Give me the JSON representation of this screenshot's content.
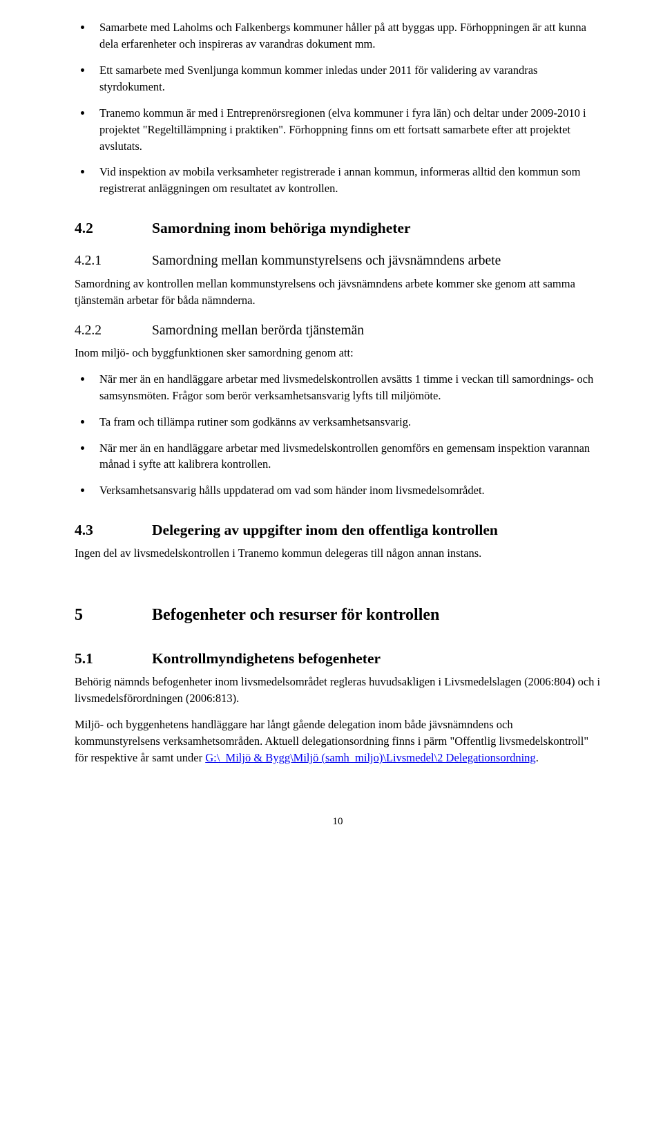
{
  "top_bullets": [
    "Samarbete med Laholms och Falkenbergs kommuner håller på att byggas upp. Förhoppningen är att kunna dela erfarenheter och inspireras av varandras dokument mm.",
    "Ett samarbete med Svenljunga kommun kommer inledas under 2011 för validering av varandras styrdokument.",
    "Tranemo kommun är med i Entreprenörsregionen (elva kommuner i fyra län) och deltar under 2009-2010 i projektet \"Regeltillämpning i praktiken\". Förhoppning finns om ett fortsatt samarbete efter att projektet avslutats.",
    "Vid inspektion av mobila verksamheter registrerade i annan kommun, informeras alltid den kommun som registrerat anläggningen om resultatet av kontrollen."
  ],
  "s42": {
    "num": "4.2",
    "title": "Samordning inom behöriga myndigheter"
  },
  "s421": {
    "num": "4.2.1",
    "title": "Samordning mellan kommunstyrelsens och jävsnämndens arbete",
    "para": "Samordning av kontrollen mellan kommunstyrelsens och jävsnämndens arbete kommer ske genom att samma tjänstemän arbetar för båda nämnderna."
  },
  "s422": {
    "num": "4.2.2",
    "title": "Samordning mellan berörda tjänstemän",
    "intro": "Inom miljö- och byggfunktionen sker samordning genom att:",
    "bullets": [
      "När mer än en handläggare arbetar med livsmedelskontrollen avsätts 1 timme i veckan till samordnings- och samsynsmöten. Frågor som berör verksamhetsansvarig lyfts till miljömöte.",
      "Ta fram och tillämpa rutiner som godkänns av verksamhetsansvarig.",
      "När mer än en handläggare arbetar med livsmedelskontrollen genomförs en gemensam inspektion varannan månad i syfte att kalibrera kontrollen.",
      "Verksamhetsansvarig hålls uppdaterad om vad som händer inom livsmedelsområdet."
    ]
  },
  "s43": {
    "num": "4.3",
    "title": "Delegering av uppgifter inom den offentliga kontrollen",
    "para": "Ingen del av livsmedelskontrollen i Tranemo kommun delegeras till någon annan instans."
  },
  "s5": {
    "num": "5",
    "title": "Befogenheter och resurser för kontrollen"
  },
  "s51": {
    "num": "5.1",
    "title": "Kontrollmyndighetens befogenheter",
    "para1": "Behörig nämnds befogenheter inom livsmedelsområdet regleras huvudsakligen i Livsmedelslagen (2006:804) och i livsmedelsförordningen (2006:813).",
    "para2_a": "Miljö- och byggenhetens handläggare har långt gående delegation inom både jävsnämndens och kommunstyrelsens verksamhetsområden. Aktuell delegationsordning finns i pärm \"Offentlig livsmedelskontroll\" för respektive år samt under ",
    "para2_link": "G:\\_Miljö & Bygg\\Miljö (samh_miljo)\\Livsmedel\\2 Delegationsordning",
    "para2_b": "."
  },
  "page_number": "10"
}
